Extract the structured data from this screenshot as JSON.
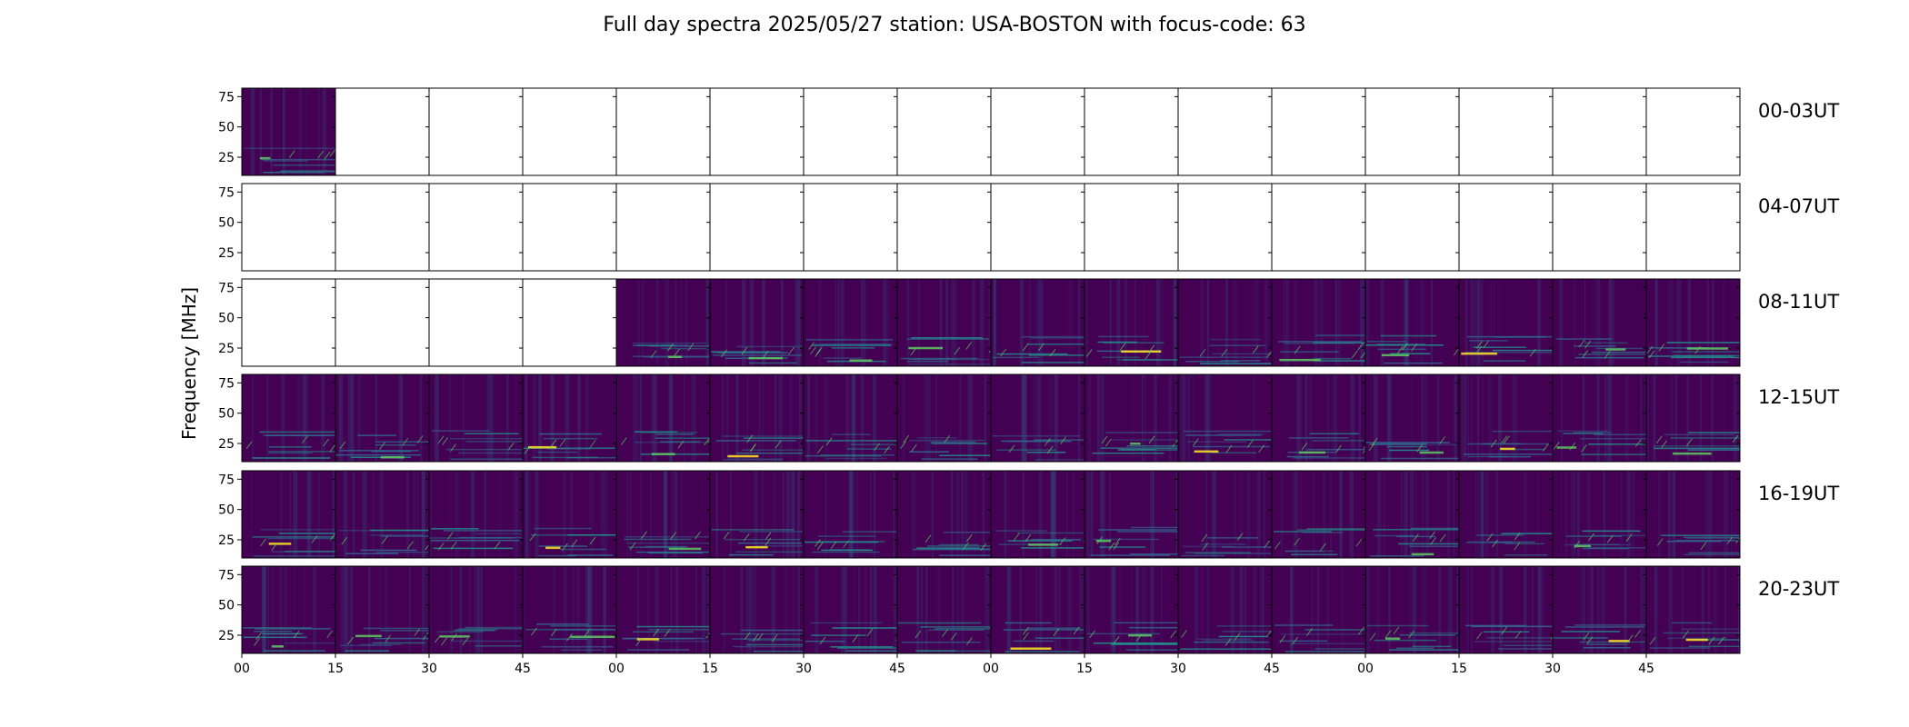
{
  "title": "Full day spectra 2025/05/27 station: USA-BOSTON with focus-code: 63",
  "chart_data": {
    "type": "heatmap",
    "title": "Full day spectra 2025/05/27 station: USA-BOSTON with focus-code: 63",
    "xlabel": "",
    "ylabel": "Frequency [MHz]",
    "colormap": "viridis",
    "y_ticks": [
      "25",
      "50",
      "75"
    ],
    "x_ticks": [
      "00",
      "15",
      "30",
      "45",
      "00",
      "15",
      "30",
      "45",
      "00",
      "15",
      "30",
      "45",
      "00",
      "15",
      "30",
      "45"
    ],
    "row_labels": [
      "00-03UT",
      "04-07UT",
      "08-11UT",
      "12-15UT",
      "16-19UT",
      "20-23UT"
    ],
    "panels_per_row": 16,
    "panel_minutes": 15,
    "availability": [
      [
        1,
        0,
        0,
        0,
        0,
        0,
        0,
        0,
        0,
        0,
        0,
        0,
        0,
        0,
        0,
        0
      ],
      [
        0,
        0,
        0,
        0,
        0,
        0,
        0,
        0,
        0,
        0,
        0,
        0,
        0,
        0,
        0,
        0
      ],
      [
        0,
        0,
        0,
        0,
        1,
        1,
        1,
        1,
        1,
        1,
        1,
        1,
        1,
        1,
        1,
        1
      ],
      [
        1,
        1,
        1,
        1,
        1,
        1,
        1,
        1,
        1,
        1,
        1,
        1,
        1,
        1,
        1,
        1
      ],
      [
        1,
        1,
        1,
        1,
        1,
        1,
        1,
        1,
        1,
        1,
        1,
        1,
        1,
        1,
        1,
        1
      ],
      [
        1,
        1,
        1,
        1,
        1,
        1,
        1,
        1,
        1,
        1,
        1,
        1,
        1,
        1,
        1,
        1
      ]
    ],
    "colors": {
      "background": "#440154",
      "mid": "#31688e",
      "teal": "#21918c",
      "green": "#5ec962",
      "high": "#fde725"
    }
  }
}
